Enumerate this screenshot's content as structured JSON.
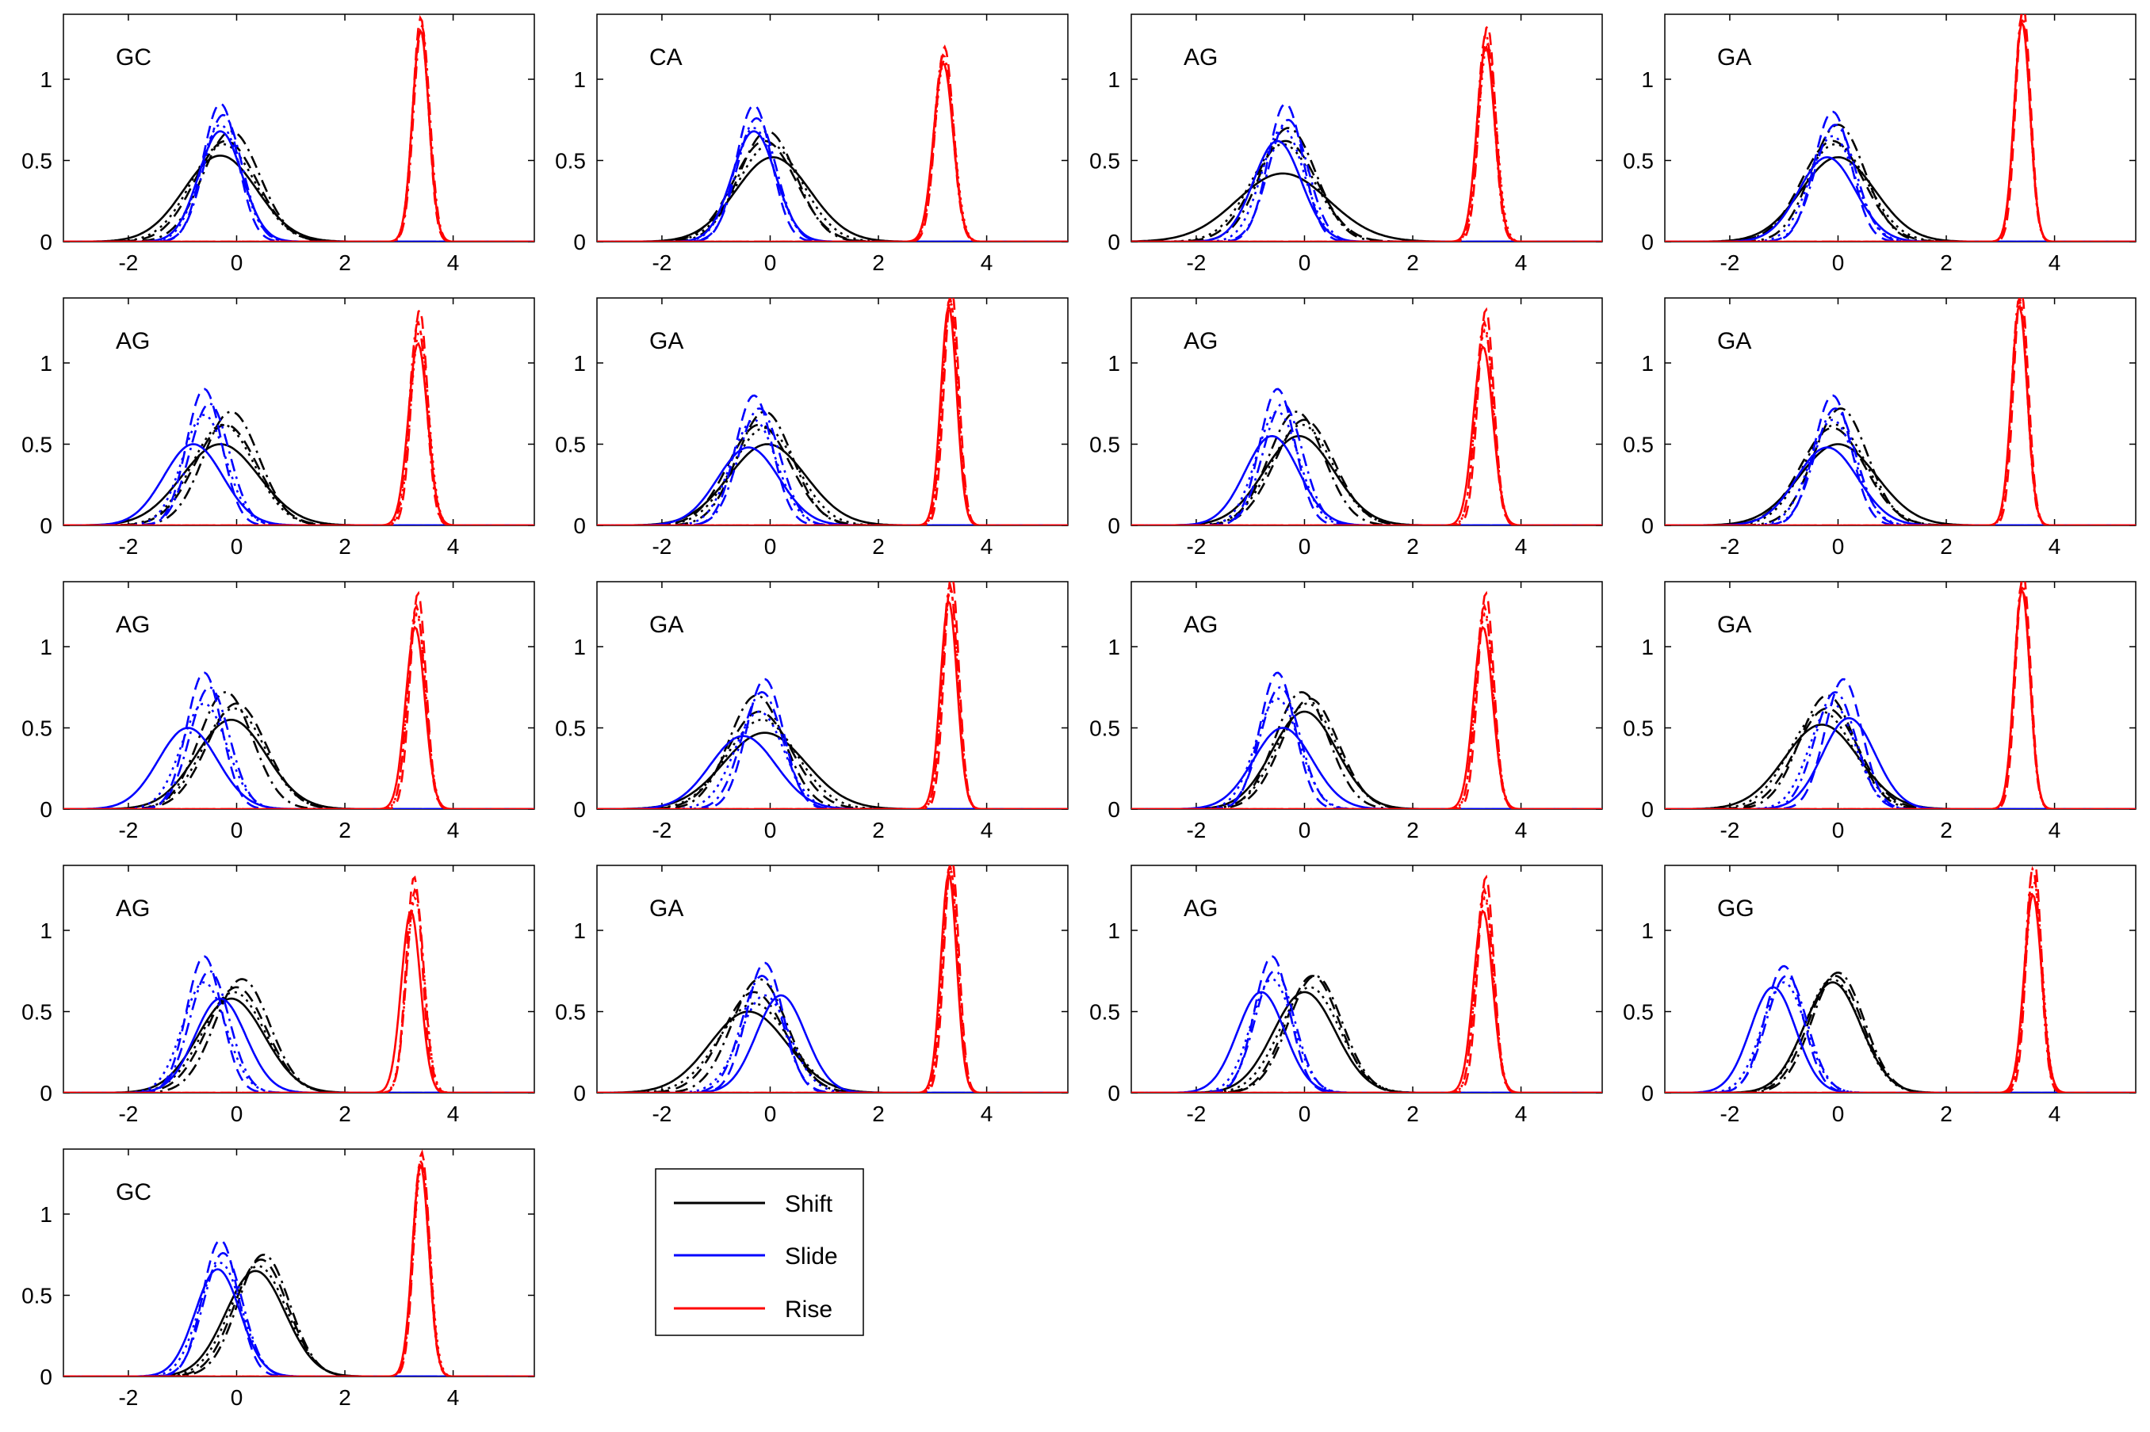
{
  "chart_data": {
    "type": "line",
    "layout": "5 rows x 4 columns grid of small multiples, 17 panels",
    "xlim": [
      -3.2,
      5.5
    ],
    "ylim": [
      0,
      1.4
    ],
    "xticks": [
      -2,
      0,
      2,
      4
    ],
    "yticks": [
      0,
      0.5,
      1
    ],
    "xtick_labels": [
      "-2",
      "0",
      "2",
      "4"
    ],
    "ytick_labels": [
      "0",
      "0.5",
      "1"
    ],
    "grid": false,
    "legend": {
      "placement": "panel area right of last panel",
      "entries": [
        {
          "label": "Shift",
          "color": "#000000"
        },
        {
          "label": "Slide",
          "color": "#0000ff"
        },
        {
          "label": "Rise",
          "color": "#ff0000"
        }
      ]
    },
    "line_styles": [
      "solid",
      "dashed",
      "dash-dot",
      "dotted"
    ],
    "series_colors": {
      "shift": "#000000",
      "slide": "#0000ff",
      "rise": "#ff0000"
    },
    "panels": [
      {
        "title": "GC",
        "shift": {
          "mu": [
            -0.3,
            -0.2,
            -0.1,
            -0.25
          ],
          "peak": [
            0.53,
            0.62,
            0.68,
            0.6
          ]
        },
        "slide": {
          "mu": [
            -0.3,
            -0.3,
            -0.25,
            -0.3
          ],
          "peak": [
            0.68,
            0.85,
            0.78,
            0.72
          ]
        },
        "rise": {
          "mu": [
            3.4,
            3.4,
            3.42,
            3.4
          ],
          "peak": [
            1.3,
            1.38,
            1.33,
            1.3
          ]
        }
      },
      {
        "title": "CA",
        "shift": {
          "mu": [
            0.05,
            -0.1,
            -0.05,
            0.0
          ],
          "peak": [
            0.52,
            0.62,
            0.68,
            0.6
          ]
        },
        "slide": {
          "mu": [
            -0.3,
            -0.3,
            -0.25,
            -0.3
          ],
          "peak": [
            0.68,
            0.84,
            0.76,
            0.7
          ]
        },
        "rise": {
          "mu": [
            3.2,
            3.22,
            3.2,
            3.22
          ],
          "peak": [
            1.1,
            1.2,
            1.15,
            1.12
          ]
        }
      },
      {
        "title": "AG",
        "shift": {
          "mu": [
            -0.4,
            -0.35,
            -0.3,
            -0.4
          ],
          "peak": [
            0.42,
            0.62,
            0.7,
            0.6
          ]
        },
        "slide": {
          "mu": [
            -0.5,
            -0.35,
            -0.3,
            -0.4
          ],
          "peak": [
            0.62,
            0.85,
            0.75,
            0.7
          ]
        },
        "rise": {
          "mu": [
            3.35,
            3.38,
            3.35,
            3.38
          ],
          "peak": [
            1.2,
            1.33,
            1.28,
            1.22
          ]
        }
      },
      {
        "title": "GA",
        "shift": {
          "mu": [
            0.0,
            -0.1,
            0.0,
            -0.05
          ],
          "peak": [
            0.52,
            0.62,
            0.72,
            0.6
          ]
        },
        "slide": {
          "mu": [
            -0.2,
            -0.1,
            -0.05,
            -0.1
          ],
          "peak": [
            0.52,
            0.8,
            0.72,
            0.65
          ]
        },
        "rise": {
          "mu": [
            3.4,
            3.42,
            3.4,
            3.4
          ],
          "peak": [
            1.35,
            1.45,
            1.4,
            1.37
          ]
        }
      },
      {
        "title": "AG",
        "shift": {
          "mu": [
            -0.3,
            -0.2,
            -0.1,
            -0.25
          ],
          "peak": [
            0.5,
            0.62,
            0.7,
            0.62
          ]
        },
        "slide": {
          "mu": [
            -0.8,
            -0.6,
            -0.5,
            -0.6
          ],
          "peak": [
            0.5,
            0.84,
            0.75,
            0.68
          ]
        },
        "rise": {
          "mu": [
            3.35,
            3.38,
            3.35,
            3.38
          ],
          "peak": [
            1.12,
            1.33,
            1.25,
            1.2
          ]
        }
      },
      {
        "title": "GA",
        "shift": {
          "mu": [
            -0.05,
            -0.2,
            -0.1,
            -0.1
          ],
          "peak": [
            0.5,
            0.62,
            0.7,
            0.6
          ]
        },
        "slide": {
          "mu": [
            -0.4,
            -0.3,
            -0.2,
            -0.3
          ],
          "peak": [
            0.48,
            0.8,
            0.72,
            0.65
          ]
        },
        "rise": {
          "mu": [
            3.3,
            3.35,
            3.32,
            3.33
          ],
          "peak": [
            1.35,
            1.45,
            1.4,
            1.38
          ]
        }
      },
      {
        "title": "AG",
        "shift": {
          "mu": [
            -0.1,
            0.0,
            -0.15,
            -0.05
          ],
          "peak": [
            0.55,
            0.65,
            0.7,
            0.62
          ]
        },
        "slide": {
          "mu": [
            -0.6,
            -0.5,
            -0.4,
            -0.5
          ],
          "peak": [
            0.55,
            0.84,
            0.75,
            0.7
          ]
        },
        "rise": {
          "mu": [
            3.3,
            3.35,
            3.32,
            3.33
          ],
          "peak": [
            1.1,
            1.33,
            1.25,
            1.2
          ]
        }
      },
      {
        "title": "GA",
        "shift": {
          "mu": [
            0.0,
            -0.1,
            0.05,
            -0.05
          ],
          "peak": [
            0.5,
            0.6,
            0.72,
            0.62
          ]
        },
        "slide": {
          "mu": [
            -0.2,
            -0.1,
            -0.05,
            -0.1
          ],
          "peak": [
            0.48,
            0.8,
            0.72,
            0.65
          ]
        },
        "rise": {
          "mu": [
            3.35,
            3.38,
            3.35,
            3.36
          ],
          "peak": [
            1.35,
            1.45,
            1.4,
            1.38
          ]
        }
      },
      {
        "title": "AG",
        "shift": {
          "mu": [
            -0.1,
            0.0,
            -0.2,
            -0.05
          ],
          "peak": [
            0.55,
            0.65,
            0.72,
            0.62
          ]
        },
        "slide": {
          "mu": [
            -0.9,
            -0.6,
            -0.5,
            -0.6
          ],
          "peak": [
            0.5,
            0.84,
            0.75,
            0.65
          ]
        },
        "rise": {
          "mu": [
            3.3,
            3.35,
            3.32,
            3.33
          ],
          "peak": [
            1.12,
            1.33,
            1.25,
            1.2
          ]
        }
      },
      {
        "title": "GA",
        "shift": {
          "mu": [
            -0.1,
            -0.2,
            -0.25,
            -0.15
          ],
          "peak": [
            0.47,
            0.6,
            0.7,
            0.55
          ]
        },
        "slide": {
          "mu": [
            -0.5,
            -0.1,
            -0.15,
            -0.2
          ],
          "peak": [
            0.45,
            0.8,
            0.72,
            0.6
          ]
        },
        "rise": {
          "mu": [
            3.3,
            3.35,
            3.32,
            3.33
          ],
          "peak": [
            1.28,
            1.45,
            1.38,
            1.35
          ]
        }
      },
      {
        "title": "AG",
        "shift": {
          "mu": [
            0.0,
            0.1,
            -0.05,
            0.05
          ],
          "peak": [
            0.6,
            0.68,
            0.72,
            0.65
          ]
        },
        "slide": {
          "mu": [
            -0.4,
            -0.5,
            -0.45,
            -0.5
          ],
          "peak": [
            0.5,
            0.84,
            0.75,
            0.68
          ]
        },
        "rise": {
          "mu": [
            3.3,
            3.35,
            3.32,
            3.33
          ],
          "peak": [
            1.12,
            1.33,
            1.25,
            1.2
          ]
        }
      },
      {
        "title": "GA",
        "shift": {
          "mu": [
            -0.3,
            -0.2,
            -0.2,
            -0.3
          ],
          "peak": [
            0.52,
            0.62,
            0.7,
            0.6
          ]
        },
        "slide": {
          "mu": [
            0.2,
            0.1,
            -0.05,
            -0.1
          ],
          "peak": [
            0.56,
            0.8,
            0.72,
            0.65
          ]
        },
        "rise": {
          "mu": [
            3.4,
            3.42,
            3.4,
            3.4
          ],
          "peak": [
            1.35,
            1.45,
            1.4,
            1.37
          ]
        }
      },
      {
        "title": "AG",
        "shift": {
          "mu": [
            -0.1,
            0.0,
            0.1,
            -0.05
          ],
          "peak": [
            0.58,
            0.65,
            0.7,
            0.62
          ]
        },
        "slide": {
          "mu": [
            -0.3,
            -0.6,
            -0.5,
            -0.6
          ],
          "peak": [
            0.58,
            0.84,
            0.75,
            0.68
          ]
        },
        "rise": {
          "mu": [
            3.22,
            3.28,
            3.3,
            3.3
          ],
          "peak": [
            1.12,
            1.33,
            1.25,
            1.2
          ]
        }
      },
      {
        "title": "GA",
        "shift": {
          "mu": [
            -0.4,
            -0.3,
            -0.2,
            -0.3
          ],
          "peak": [
            0.5,
            0.62,
            0.7,
            0.55
          ]
        },
        "slide": {
          "mu": [
            0.2,
            -0.1,
            -0.15,
            -0.1
          ],
          "peak": [
            0.6,
            0.8,
            0.72,
            0.6
          ]
        },
        "rise": {
          "mu": [
            3.3,
            3.35,
            3.32,
            3.33
          ],
          "peak": [
            1.35,
            1.45,
            1.4,
            1.38
          ]
        }
      },
      {
        "title": "AG",
        "shift": {
          "mu": [
            0.0,
            0.15,
            0.2,
            0.1
          ],
          "peak": [
            0.62,
            0.72,
            0.72,
            0.65
          ]
        },
        "slide": {
          "mu": [
            -0.8,
            -0.6,
            -0.55,
            -0.6
          ],
          "peak": [
            0.62,
            0.84,
            0.75,
            0.7
          ]
        },
        "rise": {
          "mu": [
            3.3,
            3.35,
            3.32,
            3.33
          ],
          "peak": [
            1.12,
            1.33,
            1.25,
            1.2
          ]
        }
      },
      {
        "title": "GG",
        "shift": {
          "mu": [
            -0.1,
            -0.05,
            0.0,
            -0.1
          ],
          "peak": [
            0.68,
            0.72,
            0.74,
            0.7
          ]
        },
        "slide": {
          "mu": [
            -1.2,
            -1.0,
            -0.95,
            -1.0
          ],
          "peak": [
            0.65,
            0.78,
            0.72,
            0.68
          ]
        },
        "rise": {
          "mu": [
            3.6,
            3.62,
            3.6,
            3.62
          ],
          "peak": [
            1.22,
            1.45,
            1.38,
            1.3
          ]
        }
      },
      {
        "title": "GC",
        "shift": {
          "mu": [
            0.35,
            0.45,
            0.5,
            0.4
          ],
          "peak": [
            0.65,
            0.72,
            0.75,
            0.68
          ]
        },
        "slide": {
          "mu": [
            -0.35,
            -0.3,
            -0.25,
            -0.3
          ],
          "peak": [
            0.66,
            0.84,
            0.76,
            0.7
          ]
        },
        "rise": {
          "mu": [
            3.4,
            3.42,
            3.4,
            3.42
          ],
          "peak": [
            1.3,
            1.38,
            1.33,
            1.3
          ]
        }
      }
    ]
  }
}
